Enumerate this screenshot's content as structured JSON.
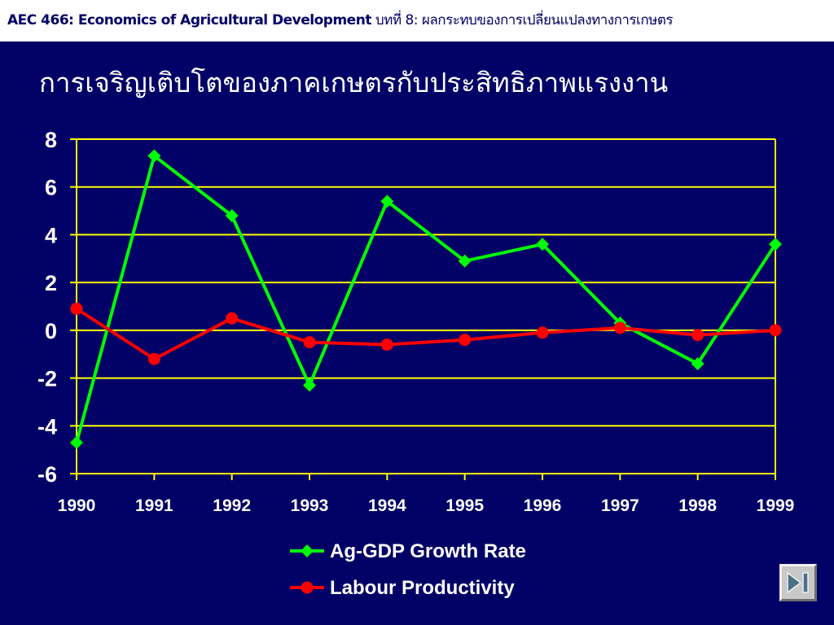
{
  "header": {
    "course_label": "AEC 466: Economics of Agricultural Development",
    "chapter_label": " บทที่ 8: ผลกระทบของการเปลี่ยนแปลงทางการเกษตร"
  },
  "slide": {
    "title": "การเจริญเติบโตของภาคเกษตรกับประสิทธิภาพแรงงาน"
  },
  "colors": {
    "background": "#000066",
    "grid": "#ffff00",
    "ag_gdp": "#00ff00",
    "labour": "#ff0000",
    "text": "#ffffff"
  },
  "chart_data": {
    "type": "line",
    "title": "",
    "xlabel": "",
    "ylabel": "",
    "categories": [
      "1990",
      "1991",
      "1992",
      "1993",
      "1994",
      "1995",
      "1996",
      "1997",
      "1998",
      "1999"
    ],
    "ylim": [
      -6,
      8
    ],
    "yticks": [
      "8",
      "6",
      "4",
      "2",
      "0",
      "-2",
      "-4",
      "-6"
    ],
    "grid": true,
    "legend_position": "bottom",
    "series": [
      {
        "name": "Ag-GDP Growth Rate",
        "marker": "diamond",
        "color": "#00ff00",
        "values": [
          -4.7,
          7.3,
          4.8,
          -2.3,
          5.4,
          2.9,
          3.6,
          0.3,
          -1.4,
          3.6
        ]
      },
      {
        "name": "Labour Productivity",
        "marker": "circle",
        "color": "#ff0000",
        "values": [
          0.9,
          -1.2,
          0.5,
          -0.5,
          -0.6,
          -0.4,
          -0.1,
          0.1,
          -0.2,
          0.0
        ]
      }
    ]
  },
  "nav": {
    "icon": "skip-to-end-icon"
  }
}
